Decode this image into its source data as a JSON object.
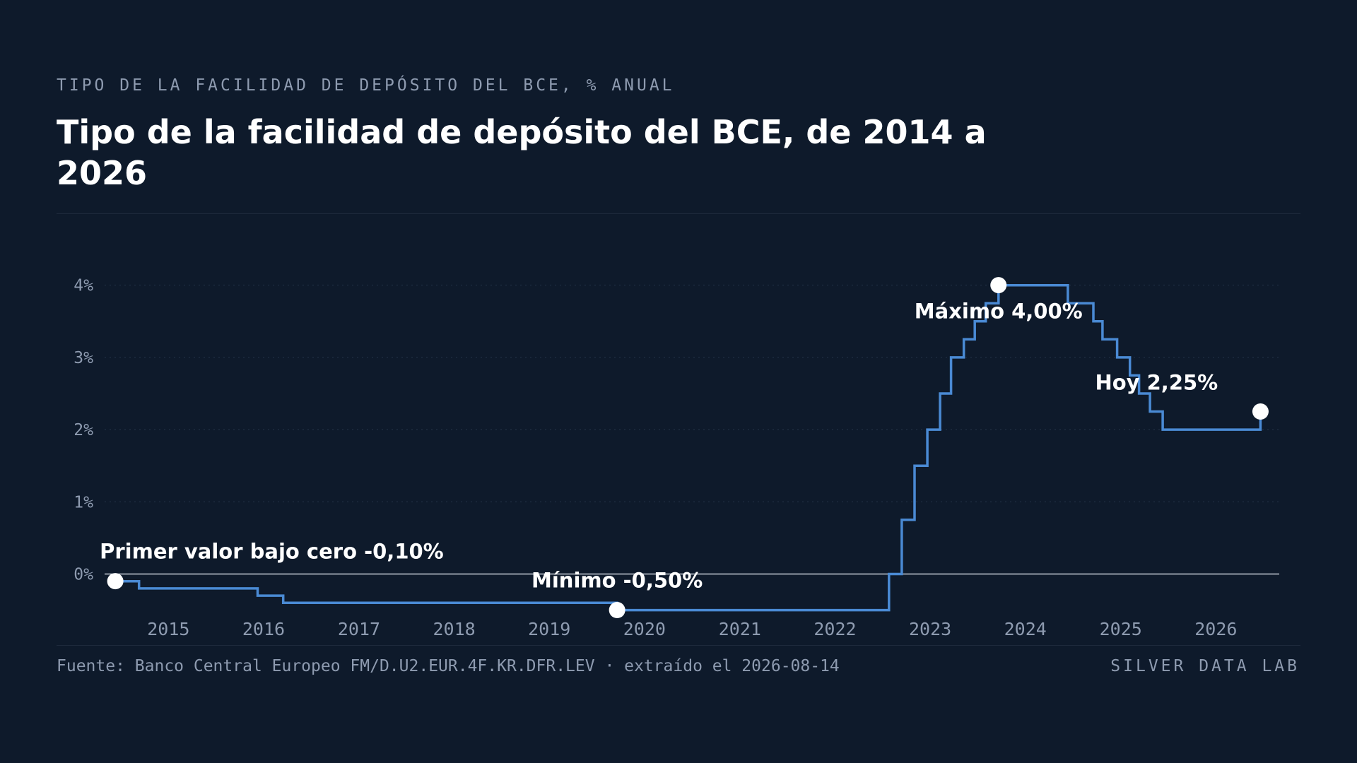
{
  "kicker": "TIPO DE LA FACILIDAD DE DEPÓSITO DEL BCE, % ANUAL",
  "title": "Tipo de la facilidad de depósito del BCE, de 2014 a 2026",
  "footer": {
    "source": "Fuente: Banco Central Europeo FM/D.U2.EUR.4F.KR.DFR.LEV · extraído el 2026-08-14",
    "brand": "SILVER DATA LAB"
  },
  "colors": {
    "background": "#0e1a2b",
    "line": "#4a8ad4",
    "zero_line": "#c8ced8",
    "muted_text": "#8e9bb0",
    "marker": "#ffffff"
  },
  "chart_data": {
    "type": "line",
    "step": true,
    "ylim": [
      -0.7,
      4.3
    ],
    "xlim": [
      "2014-05-01",
      "2026-09-01"
    ],
    "grid": true,
    "y_ticks": [
      {
        "value": 0,
        "label": "0%"
      },
      {
        "value": 1,
        "label": "1%"
      },
      {
        "value": 2,
        "label": "2%"
      },
      {
        "value": 3,
        "label": "3%"
      },
      {
        "value": 4,
        "label": "4%"
      }
    ],
    "x_ticks": [
      {
        "value": "2015-01-01",
        "label": "2015"
      },
      {
        "value": "2016-01-01",
        "label": "2016"
      },
      {
        "value": "2017-01-01",
        "label": "2017"
      },
      {
        "value": "2018-01-01",
        "label": "2018"
      },
      {
        "value": "2019-01-01",
        "label": "2019"
      },
      {
        "value": "2020-01-01",
        "label": "2020"
      },
      {
        "value": "2021-01-01",
        "label": "2021"
      },
      {
        "value": "2022-01-01",
        "label": "2022"
      },
      {
        "value": "2023-01-01",
        "label": "2023"
      },
      {
        "value": "2024-01-01",
        "label": "2024"
      },
      {
        "value": "2025-01-01",
        "label": "2025"
      },
      {
        "value": "2026-01-01",
        "label": "2026"
      }
    ],
    "series": [
      {
        "points": [
          {
            "x": "2014-06-11",
            "y": -0.1
          },
          {
            "x": "2014-09-10",
            "y": -0.2
          },
          {
            "x": "2015-12-09",
            "y": -0.3
          },
          {
            "x": "2016-03-16",
            "y": -0.4
          },
          {
            "x": "2019-09-18",
            "y": -0.5
          },
          {
            "x": "2022-07-27",
            "y": 0.0
          },
          {
            "x": "2022-09-14",
            "y": 0.75
          },
          {
            "x": "2022-11-02",
            "y": 1.5
          },
          {
            "x": "2022-12-21",
            "y": 2.0
          },
          {
            "x": "2023-02-08",
            "y": 2.5
          },
          {
            "x": "2023-03-22",
            "y": 3.0
          },
          {
            "x": "2023-05-10",
            "y": 3.25
          },
          {
            "x": "2023-06-21",
            "y": 3.5
          },
          {
            "x": "2023-08-02",
            "y": 3.75
          },
          {
            "x": "2023-09-20",
            "y": 4.0
          },
          {
            "x": "2024-06-12",
            "y": 3.75
          },
          {
            "x": "2024-09-18",
            "y": 3.5
          },
          {
            "x": "2024-10-23",
            "y": 3.25
          },
          {
            "x": "2024-12-18",
            "y": 3.0
          },
          {
            "x": "2025-02-05",
            "y": 2.75
          },
          {
            "x": "2025-03-12",
            "y": 2.5
          },
          {
            "x": "2025-04-23",
            "y": 2.25
          },
          {
            "x": "2025-06-11",
            "y": 2.0
          },
          {
            "x": "2026-06-20",
            "y": 2.0
          },
          {
            "x": "2026-06-21",
            "y": 2.25
          }
        ]
      }
    ],
    "annotations": [
      {
        "x": "2014-06-11",
        "y": -0.1,
        "label": "Primer valor bajo cero -0,10%",
        "anchor": "start"
      },
      {
        "x": "2019-09-18",
        "y": -0.5,
        "label": "Mínimo -0,50%",
        "anchor": "middle"
      },
      {
        "x": "2023-09-20",
        "y": 4.0,
        "label": "Máximo 4,00%",
        "anchor": "middle"
      },
      {
        "x": "2026-06-21",
        "y": 2.25,
        "label": "Hoy 2,25%",
        "anchor": "end"
      }
    ]
  }
}
